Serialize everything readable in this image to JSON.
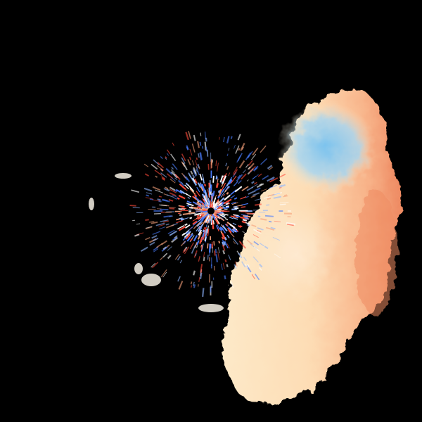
{
  "image": {
    "kind": "doppler-radar-velocity-display",
    "colors": {
      "background": "#000000",
      "inbound": "#6fb8e8",
      "outbound": "#f08a5d",
      "near_zero": "#fde7c4",
      "speckle_red": "#ff4a3a",
      "speckle_blue": "#4a7dff"
    }
  }
}
